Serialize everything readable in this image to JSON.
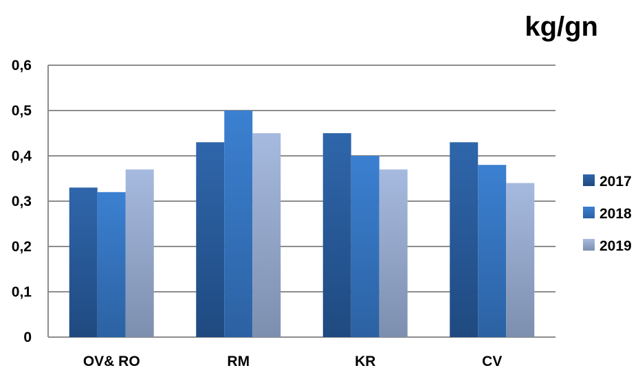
{
  "chart_data": {
    "type": "bar",
    "unit_label": "kg/gn",
    "categories": [
      "OV& RO",
      "RM",
      "KR",
      "CV"
    ],
    "series": [
      {
        "name": "2017",
        "values": [
          0.33,
          0.43,
          0.45,
          0.43
        ],
        "color_top": "#2f66ab",
        "color_bottom": "#1f4a80"
      },
      {
        "name": "2018",
        "values": [
          0.32,
          0.5,
          0.4,
          0.38
        ],
        "color_top": "#3b80d1",
        "color_bottom": "#2c62a3"
      },
      {
        "name": "2019",
        "values": [
          0.37,
          0.45,
          0.37,
          0.34
        ],
        "color_top": "#a6badf",
        "color_bottom": "#7d8faf"
      }
    ],
    "ylim": [
      0,
      0.6
    ],
    "yticks": [
      "0",
      "0,1",
      "0,2",
      "0,3",
      "0,4",
      "0,5",
      "0,6"
    ],
    "grid": true,
    "legend_position": "right"
  }
}
